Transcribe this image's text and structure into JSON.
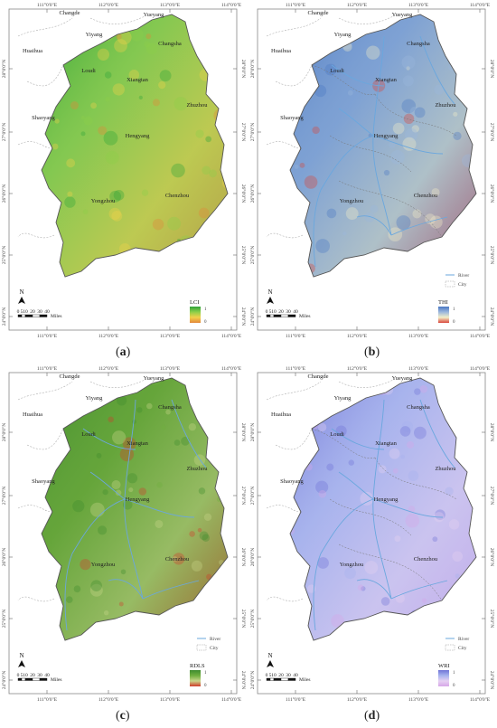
{
  "panels": [
    {
      "id": "a",
      "caption": "a",
      "index_label": "LCI",
      "legend_max": "1",
      "legend_min": "0",
      "gradient": [
        "#2fa33a",
        "#8ccf4a",
        "#f2d14b",
        "#e3873a"
      ],
      "region_color": "#7cc05a",
      "show_rivers": false,
      "show_city_lines": false,
      "legend_items": []
    },
    {
      "id": "b",
      "caption": "b",
      "index_label": "THI",
      "legend_max": "1",
      "legend_min": "0",
      "gradient": [
        "#4a78c2",
        "#9bb7dd",
        "#f3efc8",
        "#d9453a"
      ],
      "region_color": "#5b87c8",
      "show_rivers": true,
      "show_city_lines": true,
      "legend_items": [
        "River",
        "City"
      ]
    },
    {
      "id": "c",
      "caption": "c",
      "index_label": "RDLS",
      "legend_max": "1",
      "legend_min": "0",
      "gradient": [
        "#3e8b2f",
        "#6fae3f",
        "#c9d68a",
        "#d03b2b"
      ],
      "region_color": "#5a9a35",
      "show_rivers": true,
      "show_city_lines": false,
      "legend_items": [
        "River",
        "City"
      ]
    },
    {
      "id": "d",
      "caption": "d",
      "index_label": "WRI",
      "legend_max": "1",
      "legend_min": "0",
      "gradient": [
        "#6f74d6",
        "#a7b3ee",
        "#e6d0f2",
        "#d6a6e8"
      ],
      "region_color": "#a9b4ec",
      "show_rivers": true,
      "show_city_lines": true,
      "legend_items": [
        "River",
        "City"
      ]
    }
  ],
  "longitude_labels": [
    "111°0'0\"E",
    "112°0'0\"E",
    "113°0'0\"E",
    "114°0'0\"E"
  ],
  "latitude_labels": [
    "28°0'0\"N",
    "27°0'0\"N",
    "26°0'0\"N",
    "25°0'0\"N",
    "24°0'0\"N"
  ],
  "cities_outside": [
    "Changde",
    "Yueyang",
    "Yiyang",
    "Huaihua",
    "Shaoyang"
  ],
  "cities_inside": [
    "Changsha",
    "Loudi",
    "Xiangtan",
    "Zhuzhou",
    "Hengyang",
    "Yongzhou",
    "Chenzhou"
  ],
  "scale_bar": {
    "ticks": [
      "0",
      "5",
      "10",
      "20",
      "30",
      "40"
    ],
    "unit": "Miles"
  },
  "north_arrow_label": "N",
  "colors": {
    "frame": "#888888",
    "outline": "#555555",
    "river": "#6aa7de",
    "city_line": "#b0b0b0"
  }
}
